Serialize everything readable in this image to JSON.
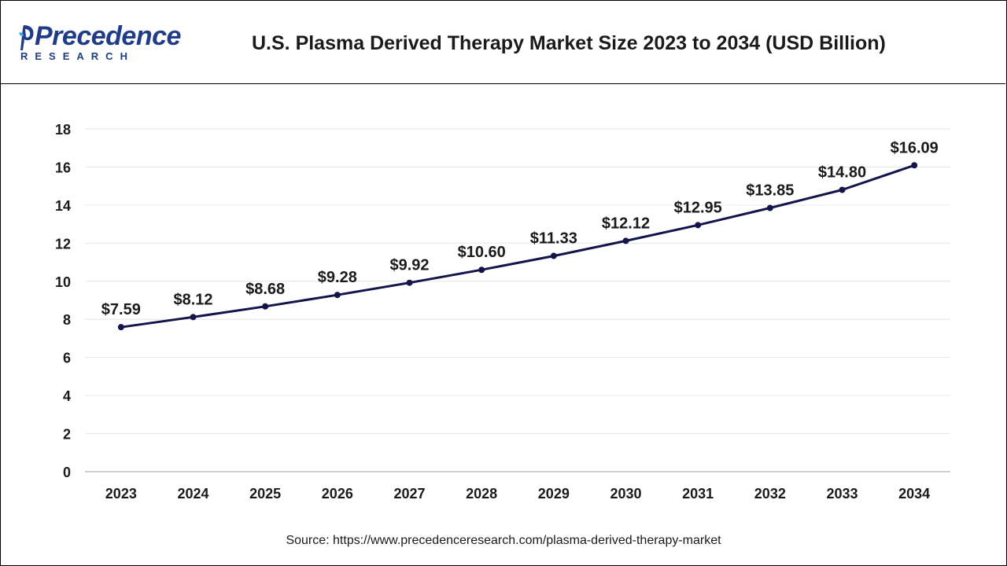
{
  "header": {
    "logo_main": "Precedence",
    "logo_sub": "RESEARCH",
    "title": "U.S. Plasma Derived Therapy Market Size 2023 to 2034 (USD Billion)"
  },
  "colors": {
    "line": "#12144a",
    "brand": "#1f3c88",
    "grid": "#e6e6e6",
    "axis": "#bfbfbf",
    "text": "#1a1a1a"
  },
  "chart_data": {
    "type": "line",
    "title": "U.S. Plasma Derived Therapy Market Size 2023 to 2034 (USD Billion)",
    "xlabel": "",
    "ylabel": "",
    "categories": [
      "2023",
      "2024",
      "2025",
      "2026",
      "2027",
      "2028",
      "2029",
      "2030",
      "2031",
      "2032",
      "2033",
      "2034"
    ],
    "values": [
      7.59,
      8.12,
      8.68,
      9.28,
      9.92,
      10.6,
      11.33,
      12.12,
      12.95,
      13.85,
      14.8,
      16.09
    ],
    "data_labels": [
      "$7.59",
      "$8.12",
      "$8.68",
      "$9.28",
      "$9.92",
      "$10.60",
      "$11.33",
      "$12.12",
      "$12.95",
      "$13.85",
      "$14.80",
      "$16.09"
    ],
    "ylim": [
      0,
      18
    ],
    "yticks": [
      "0",
      "2",
      "4",
      "6",
      "8",
      "10",
      "12",
      "14",
      "16",
      "18"
    ],
    "grid": true,
    "legend": "none"
  },
  "footer": {
    "source": "Source: https://www.precedenceresearch.com/plasma-derived-therapy-market"
  }
}
